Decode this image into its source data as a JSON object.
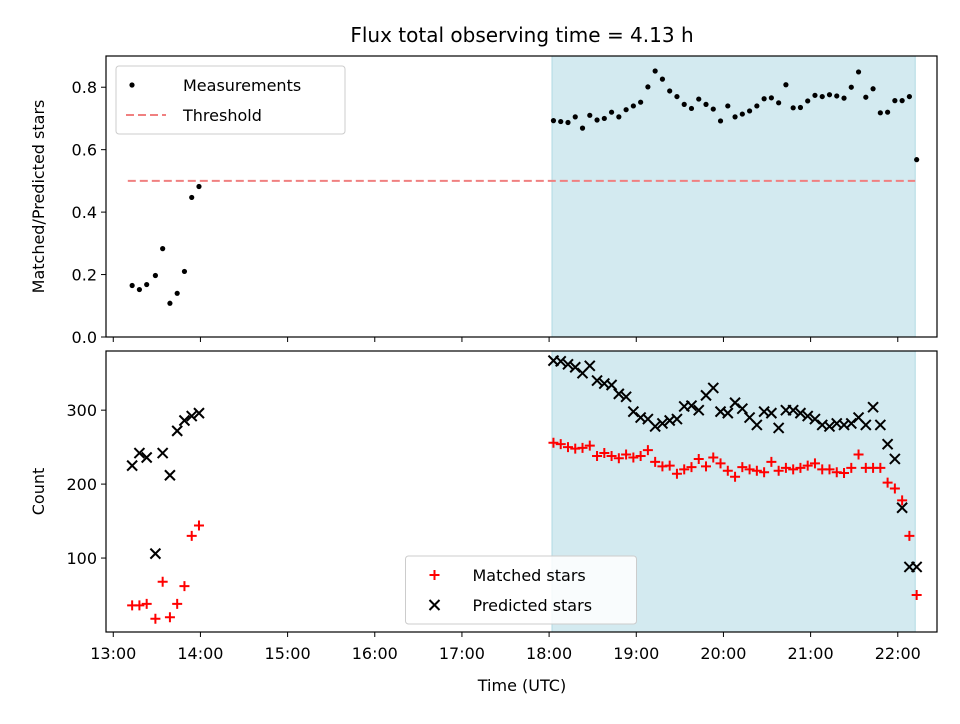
{
  "chart_data": {
    "title": "Flux total observing time = 4.13 h",
    "xlabel": "Time (UTC)",
    "x_ticks": [
      "13:00",
      "14:00",
      "15:00",
      "16:00",
      "17:00",
      "18:00",
      "19:00",
      "20:00",
      "21:00",
      "22:00"
    ],
    "xlim": [
      "12:55",
      "22:27"
    ],
    "shaded_interval": {
      "start": "18:02",
      "end": "22:12",
      "color": "#d3eaf0"
    },
    "panels": [
      {
        "type": "scatter",
        "ylabel": "Matched/Predicted stars",
        "ylim": [
          0,
          0.9
        ],
        "y_ticks": [
          "0.0",
          "0.2",
          "0.4",
          "0.6",
          "0.8"
        ],
        "legend_position": "top-left",
        "threshold": {
          "name": "Threshold",
          "value": 0.5,
          "x_start": "13:10",
          "x_end": "22:12",
          "color": "#f08080"
        },
        "series": [
          {
            "name": "Measurements",
            "marker": "dot",
            "color": "#000000",
            "x": [
              "13:13",
              "13:18",
              "13:23",
              "13:29",
              "13:34",
              "13:39",
              "13:44",
              "13:49",
              "13:54",
              "13:59",
              "18:03",
              "18:08",
              "18:13",
              "18:18",
              "18:23",
              "18:28",
              "18:33",
              "18:38",
              "18:43",
              "18:48",
              "18:53",
              "18:58",
              "19:03",
              "19:08",
              "19:13",
              "19:18",
              "19:23",
              "19:28",
              "19:33",
              "19:38",
              "19:43",
              "19:48",
              "19:53",
              "19:58",
              "20:03",
              "20:08",
              "20:13",
              "20:18",
              "20:23",
              "20:28",
              "20:33",
              "20:38",
              "20:43",
              "20:48",
              "20:53",
              "20:58",
              "21:03",
              "21:08",
              "21:13",
              "21:18",
              "21:23",
              "21:28",
              "21:33",
              "21:38",
              "21:43",
              "21:48",
              "21:53",
              "21:58",
              "22:03",
              "22:08",
              "22:13"
            ],
            "y": [
              0.165,
              0.152,
              0.168,
              0.197,
              0.283,
              0.108,
              0.14,
              0.21,
              0.447,
              0.482,
              0.693,
              0.69,
              0.687,
              0.705,
              0.669,
              0.71,
              0.695,
              0.7,
              0.72,
              0.705,
              0.728,
              0.74,
              0.752,
              0.801,
              0.852,
              0.826,
              0.788,
              0.77,
              0.745,
              0.732,
              0.762,
              0.745,
              0.73,
              0.692,
              0.74,
              0.705,
              0.714,
              0.724,
              0.74,
              0.763,
              0.766,
              0.75,
              0.808,
              0.734,
              0.735,
              0.756,
              0.774,
              0.77,
              0.776,
              0.772,
              0.765,
              0.8,
              0.849,
              0.768,
              0.795,
              0.718,
              0.72,
              0.757,
              0.757,
              0.77,
              0.568
            ]
          }
        ]
      },
      {
        "type": "scatter",
        "ylabel": "Count",
        "ylim": [
          0,
          380
        ],
        "y_ticks": [
          "100",
          "200",
          "300"
        ],
        "legend_position": "bottom-center",
        "series": [
          {
            "name": "Matched stars",
            "marker": "plus",
            "color": "#ff0000",
            "x": [
              "13:13",
              "13:18",
              "13:23",
              "13:29",
              "13:34",
              "13:39",
              "13:44",
              "13:49",
              "13:54",
              "13:59",
              "18:03",
              "18:08",
              "18:13",
              "18:18",
              "18:23",
              "18:28",
              "18:33",
              "18:38",
              "18:43",
              "18:48",
              "18:53",
              "18:58",
              "19:03",
              "19:08",
              "19:13",
              "19:18",
              "19:23",
              "19:28",
              "19:33",
              "19:38",
              "19:43",
              "19:48",
              "19:53",
              "19:58",
              "20:03",
              "20:08",
              "20:13",
              "20:18",
              "20:23",
              "20:28",
              "20:33",
              "20:38",
              "20:43",
              "20:48",
              "20:53",
              "20:58",
              "21:03",
              "21:08",
              "21:13",
              "21:18",
              "21:23",
              "21:28",
              "21:33",
              "21:38",
              "21:43",
              "21:48",
              "21:53",
              "21:58",
              "22:03",
              "22:08",
              "22:13"
            ],
            "y": [
              36,
              36,
              38,
              18,
              68,
              20,
              38,
              62,
              130,
              144,
              256,
              254,
              250,
              248,
              249,
              252,
              238,
              242,
              238,
              235,
              240,
              236,
              238,
              246,
              230,
              224,
              225,
              214,
              220,
              223,
              234,
              224,
              236,
              228,
              218,
              210,
              223,
              220,
              218,
              216,
              230,
              218,
              222,
              220,
              222,
              225,
              228,
              220,
              220,
              216,
              215,
              222,
              240,
              222,
              222,
              222,
              202,
              194,
              178,
              130,
              50
            ]
          },
          {
            "name": "Predicted stars",
            "marker": "x",
            "color": "#000000",
            "x": [
              "13:13",
              "13:18",
              "13:23",
              "13:29",
              "13:34",
              "13:39",
              "13:44",
              "13:49",
              "13:54",
              "13:59",
              "18:03",
              "18:08",
              "18:13",
              "18:18",
              "18:23",
              "18:28",
              "18:33",
              "18:38",
              "18:43",
              "18:48",
              "18:53",
              "18:58",
              "19:03",
              "19:08",
              "19:13",
              "19:18",
              "19:23",
              "19:28",
              "19:33",
              "19:38",
              "19:43",
              "19:48",
              "19:53",
              "19:58",
              "20:03",
              "20:08",
              "20:13",
              "20:18",
              "20:23",
              "20:28",
              "20:33",
              "20:38",
              "20:43",
              "20:48",
              "20:53",
              "20:58",
              "21:03",
              "21:08",
              "21:13",
              "21:18",
              "21:23",
              "21:28",
              "21:33",
              "21:38",
              "21:43",
              "21:48",
              "21:53",
              "21:58",
              "22:03",
              "22:08",
              "22:13"
            ],
            "y": [
              225,
              242,
              236,
              106,
              242,
              212,
              272,
              286,
              292,
              296,
              367,
              366,
              362,
              358,
              350,
              360,
              340,
              336,
              334,
              322,
              318,
              298,
              290,
              288,
              278,
              282,
              286,
              288,
              305,
              306,
              300,
              320,
              330,
              298,
              296,
              310,
              302,
              290,
              280,
              298,
              296,
              276,
              300,
              300,
              296,
              292,
              288,
              280,
              278,
              282,
              280,
              282,
              290,
              280,
              304,
              280,
              254,
              234,
              168,
              88,
              88
            ]
          }
        ]
      }
    ]
  }
}
